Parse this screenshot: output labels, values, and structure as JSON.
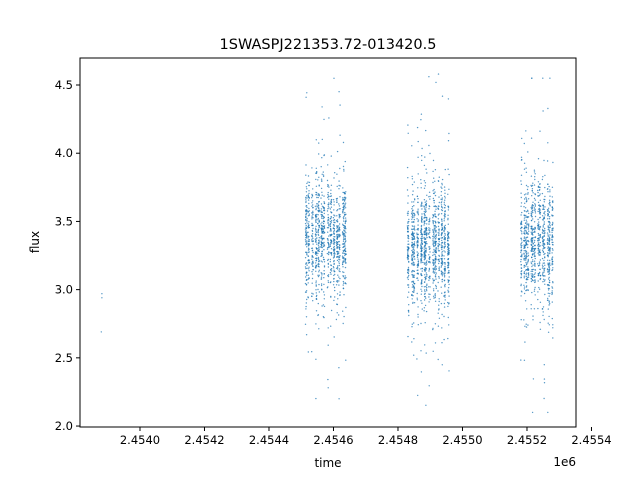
{
  "chart_data": {
    "type": "scatter",
    "title": "1SWASPJ221353.72-013420.5",
    "xlabel": "time",
    "ylabel": "flux",
    "x_offset_label": "1e6",
    "xlim": [
      2.453814,
      2.455352
    ],
    "ylim": [
      1.993,
      4.698
    ],
    "x_ticks": [
      2.454,
      2.4542,
      2.4544,
      2.4546,
      2.4548,
      2.455,
      2.4552,
      2.4554
    ],
    "x_tick_labels": [
      "2.4540",
      "2.4542",
      "2.4544",
      "2.4546",
      "2.4548",
      "2.4550",
      "2.4552",
      "2.4554"
    ],
    "y_ticks": [
      2.0,
      2.5,
      3.0,
      3.5,
      4.0,
      4.5
    ],
    "y_tick_labels": [
      "2.0",
      "2.5",
      "3.0",
      "3.5",
      "4.0",
      "4.5"
    ],
    "grid": false,
    "marker_color": "#1f77b4",
    "isolated_points": [
      {
        "x": 2.453882,
        "y": 2.97
      },
      {
        "x": 2.453882,
        "y": 2.94
      },
      {
        "x": 2.45388,
        "y": 2.69
      }
    ],
    "clusters": [
      {
        "x_range": [
          2.454512,
          2.454645
        ],
        "flux_median": 3.38,
        "flux_core": [
          3.0,
          3.8
        ],
        "flux_range": [
          2.17,
          4.58
        ],
        "points": 1100
      },
      {
        "x_range": [
          2.454831,
          2.454963
        ],
        "flux_median": 3.32,
        "flux_core": [
          2.95,
          3.75
        ],
        "flux_range": [
          2.12,
          4.58
        ],
        "points": 1200
      },
      {
        "x_range": [
          2.455181,
          2.455283
        ],
        "flux_median": 3.35,
        "flux_core": [
          2.95,
          3.8
        ],
        "flux_range": [
          2.1,
          4.55
        ],
        "points": 900
      }
    ]
  }
}
